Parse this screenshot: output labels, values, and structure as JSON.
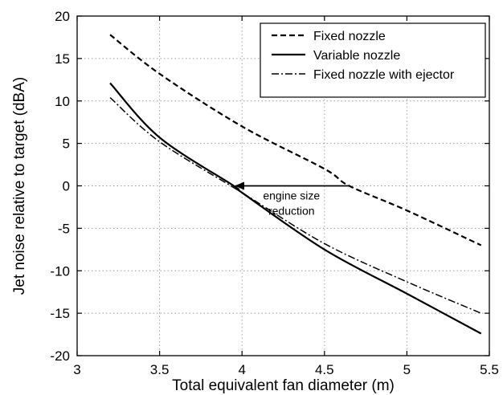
{
  "chart_data": {
    "type": "line",
    "title": "",
    "xlabel": "Total equivalent fan diameter (m)",
    "ylabel": "Jet noise relative to target (dBA)",
    "xlim": [
      3,
      5.5
    ],
    "ylim": [
      -20,
      20
    ],
    "xticks": [
      3,
      3.5,
      4,
      4.5,
      5,
      5.5
    ],
    "yticks": [
      -20,
      -15,
      -10,
      -5,
      0,
      5,
      10,
      15,
      20
    ],
    "xtick_labels": [
      "3",
      "3.5",
      "4",
      "4.5",
      "5",
      "5.5"
    ],
    "ytick_labels": [
      "-20",
      "-15",
      "-10",
      "-5",
      "0",
      "5",
      "10",
      "15",
      "20"
    ],
    "grid": true,
    "legend_position": "top-right",
    "series": [
      {
        "name": "Fixed nozzle",
        "style": "dashed",
        "color": "#000000",
        "x": [
          3.2,
          3.5,
          4.0,
          4.5,
          4.65,
          5.0,
          5.45
        ],
        "y": [
          17.8,
          13.2,
          7.0,
          2.0,
          0.0,
          -2.9,
          -7.0
        ]
      },
      {
        "name": "Variable nozzle",
        "style": "solid",
        "color": "#000000",
        "x": [
          3.2,
          3.5,
          3.95,
          4.0,
          4.5,
          5.0,
          5.45
        ],
        "y": [
          12.1,
          5.7,
          0.0,
          -0.8,
          -7.5,
          -12.7,
          -17.4
        ]
      },
      {
        "name": "Fixed nozzle with ejector",
        "style": "dashdot",
        "color": "#000000",
        "x": [
          3.2,
          3.5,
          4.0,
          4.5,
          5.0,
          5.45
        ],
        "y": [
          10.4,
          5.2,
          -0.8,
          -6.8,
          -11.3,
          -15.0
        ]
      }
    ],
    "annotations": [
      {
        "text_lines": [
          "engine size",
          "reduction"
        ],
        "arrow_from": [
          4.65,
          0
        ],
        "arrow_to": [
          3.96,
          0
        ]
      }
    ]
  }
}
